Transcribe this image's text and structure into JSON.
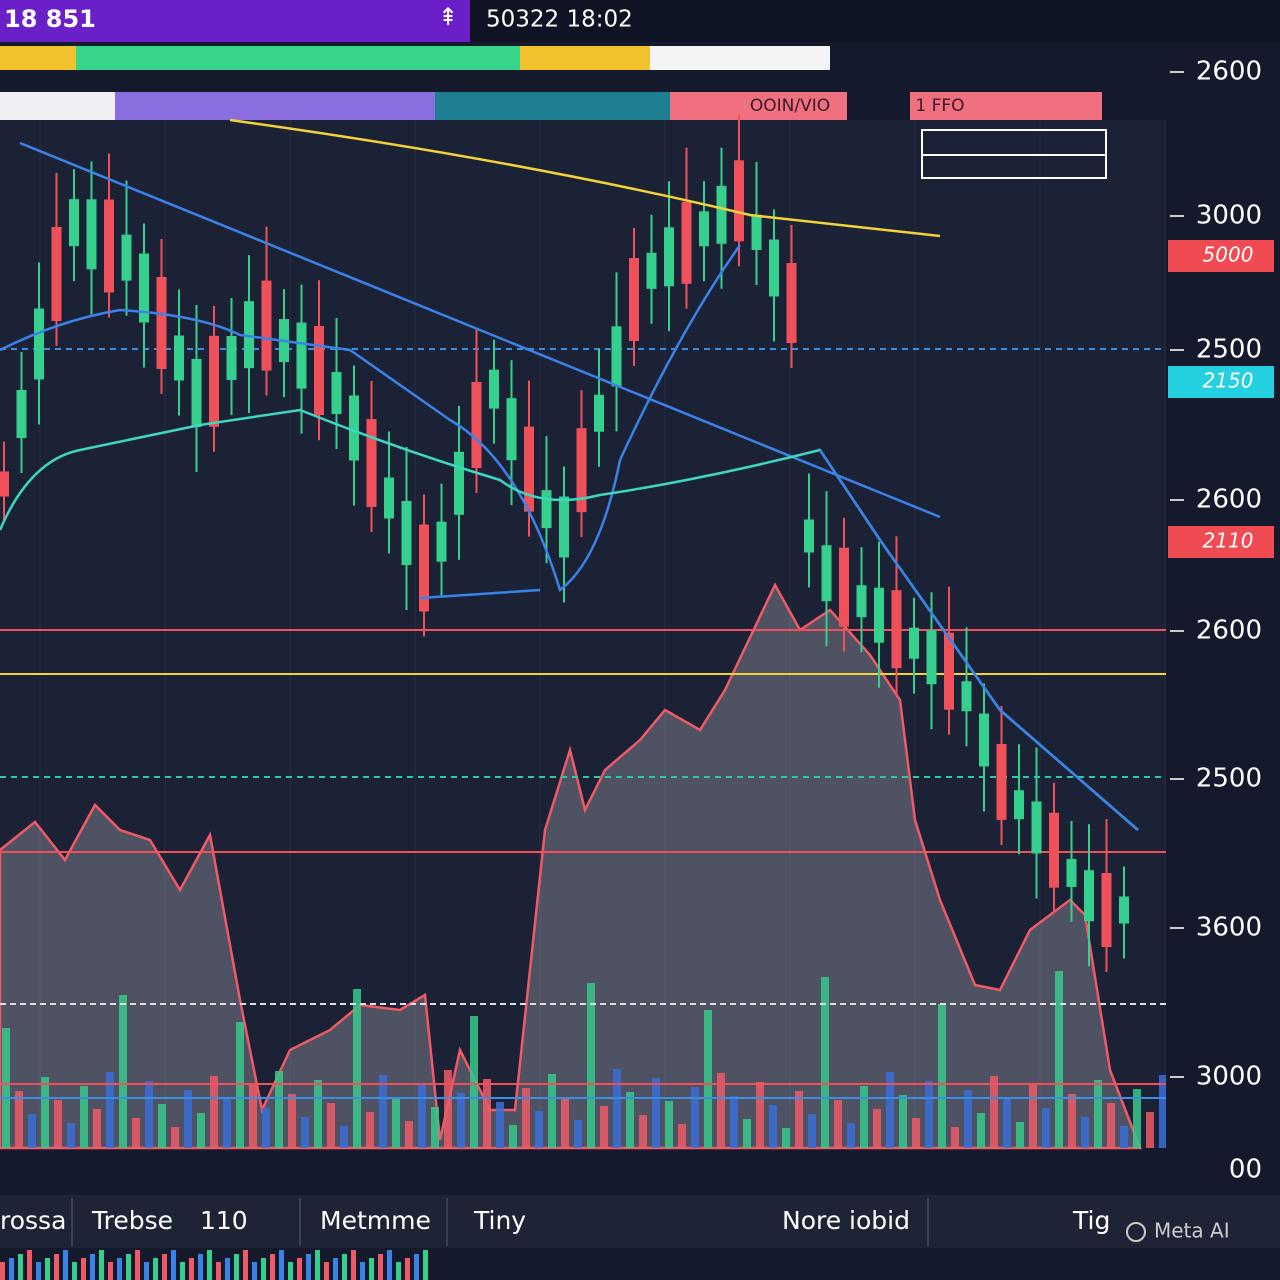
{
  "header": {
    "symbol": "18 851",
    "clock": "50322 18:02"
  },
  "tabs": [
    "OOIN/VIO",
    "1 FFO"
  ],
  "price_axis": [
    "2600",
    "3000",
    "2500",
    "2600",
    "2600",
    "2500",
    "3600",
    "3000",
    "00"
  ],
  "price_tags": [
    "5000",
    "2150",
    "2110"
  ],
  "footer": [
    "rossa",
    "Trebse",
    "110",
    "Metmme",
    "Tiny",
    "Nore iobid",
    "Tig"
  ],
  "watermark": "Meta AI"
}
